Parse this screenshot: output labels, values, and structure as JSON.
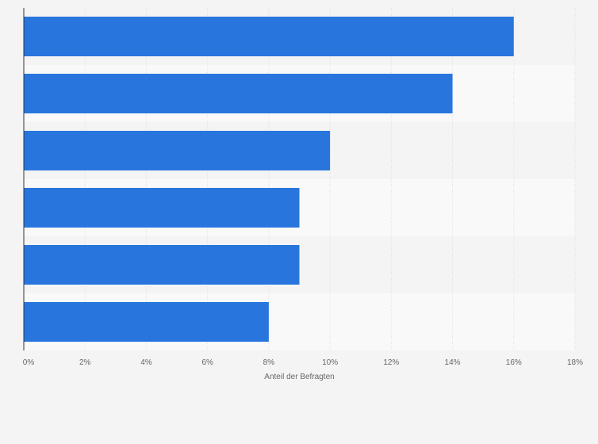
{
  "chart_data": {
    "type": "bar",
    "orientation": "horizontal",
    "categories": [
      "",
      "",
      "",
      "",
      "",
      ""
    ],
    "series": [
      {
        "values": [
          16,
          14,
          10,
          9,
          9,
          8
        ]
      }
    ],
    "x_ticks": [
      "0%",
      "2%",
      "4%",
      "6%",
      "8%",
      "10%",
      "12%",
      "14%",
      "16%",
      "18%"
    ],
    "xlim": [
      0,
      18
    ],
    "xlabel": "Anteil der Befragten",
    "ylabel": "",
    "title": "",
    "grid": true,
    "legend": "none"
  },
  "colors": {
    "background": "#f4f4f4",
    "band_odd": "#f4f4f4",
    "band_even": "#f9f9f9",
    "bar": "#2876dd",
    "grid": "#dddddd",
    "axis": "#333333",
    "text": "#666666"
  }
}
